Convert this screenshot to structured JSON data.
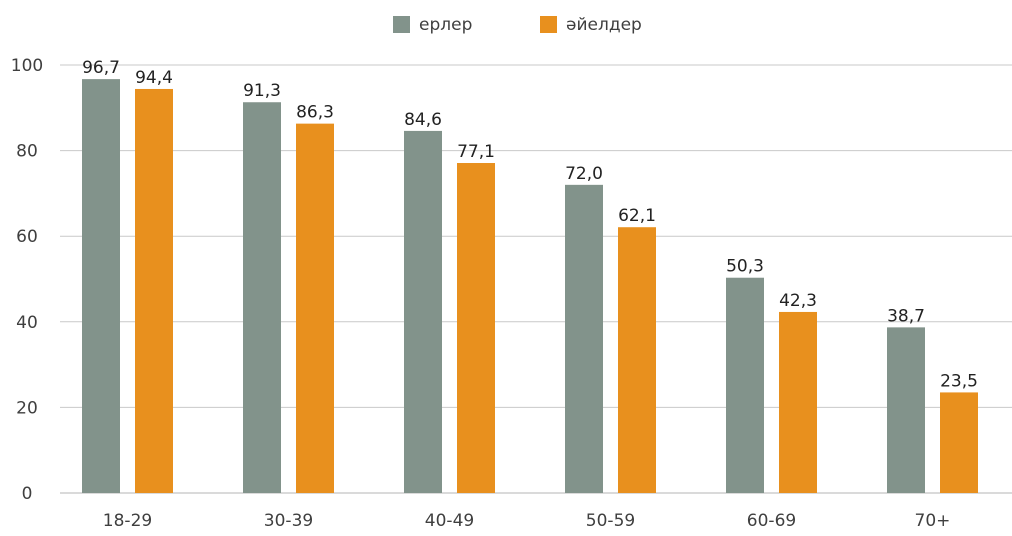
{
  "chart_data": {
    "type": "bar",
    "title": "",
    "xlabel": "",
    "ylabel": "",
    "categories": [
      "18-29",
      "30-39",
      "40-49",
      "50-59",
      "60-69",
      "70+"
    ],
    "series": [
      {
        "name": "ерлер",
        "color": "#82938b",
        "values": [
          96.7,
          91.3,
          84.6,
          72.0,
          50.3,
          38.7
        ],
        "labels": [
          "96,7",
          "91,3",
          "84,6",
          "72,0",
          "50,3",
          "38,7"
        ]
      },
      {
        "name": "әйелдер",
        "color": "#e8901e",
        "values": [
          94.4,
          86.3,
          77.1,
          62.1,
          42.3,
          23.5
        ],
        "labels": [
          "94,4",
          "86,3",
          "77,1",
          "62,1",
          "42,3",
          "23,5"
        ]
      }
    ],
    "ylim": [
      0,
      100
    ],
    "yticks": [
      "0",
      "20",
      "40",
      "60",
      "80",
      "100"
    ],
    "grid": true,
    "legend_position": "top-center"
  }
}
